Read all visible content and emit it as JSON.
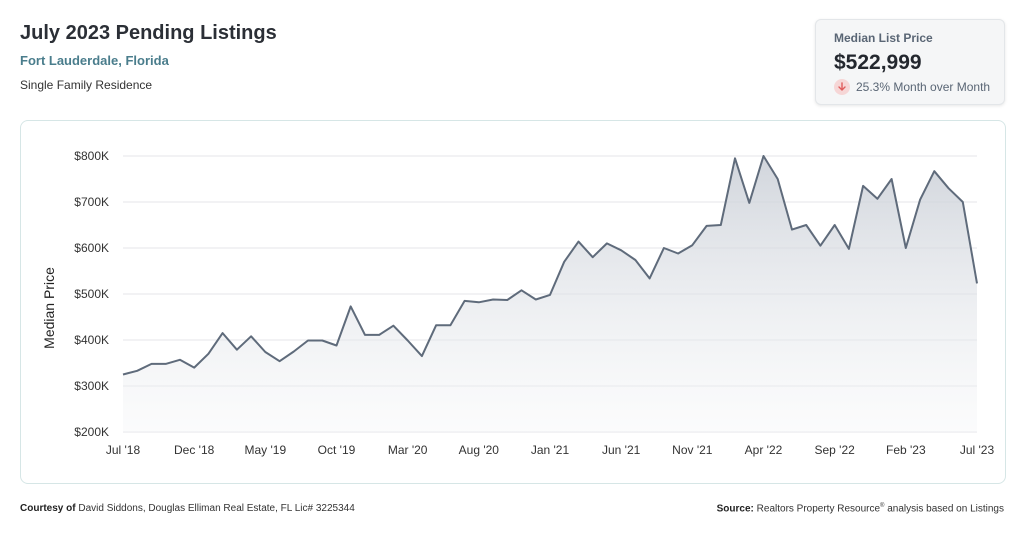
{
  "header": {
    "title": "July 2023 Pending Listings",
    "location": "Fort Lauderdale, Florida",
    "property_type": "Single Family Residence"
  },
  "stat": {
    "label": "Median List Price",
    "value": "$522,999",
    "change": "25.3% Month over Month",
    "direction": "down",
    "icon": "arrow-down-icon",
    "icon_color": "#e05c5c"
  },
  "footer": {
    "courtesy_label": "Courtesy of",
    "courtesy_text": "David Siddons, Douglas Elliman Real Estate, FL Lic# 3225344",
    "source_label": "Source:",
    "source_text_1": "Realtors Property Resource",
    "source_mark": "®",
    "source_text_2": " analysis based on Listings"
  },
  "chart_data": {
    "type": "area",
    "title": "",
    "xlabel": "",
    "ylabel": "Median Price",
    "ylim": [
      200000,
      800000
    ],
    "yticks": [
      200000,
      300000,
      400000,
      500000,
      600000,
      700000,
      800000
    ],
    "ytick_labels": [
      "$200K",
      "$300K",
      "$400K",
      "$500K",
      "$600K",
      "$700K",
      "$800K"
    ],
    "x_tick_labels": [
      "Jul '18",
      "Dec '18",
      "May '19",
      "Oct '19",
      "Mar '20",
      "Aug '20",
      "Jan '21",
      "Jun '21",
      "Nov '21",
      "Apr '22",
      "Sep '22",
      "Feb '23",
      "Jul '23"
    ],
    "x_tick_every": 5,
    "grid": true,
    "line_color": "#5f6b7b",
    "series": [
      {
        "values": [
          325000,
          333000,
          348000,
          348000,
          357000,
          340000,
          370000,
          415000,
          379000,
          408000,
          374000,
          354000,
          375000,
          399000,
          399000,
          388000,
          473000,
          411000,
          411000,
          431000,
          399000,
          365000,
          432000,
          432000,
          485000,
          482000,
          488000,
          487000,
          508000,
          488000,
          498000,
          570000,
          614000,
          580000,
          610000,
          595000,
          574000,
          534000,
          600000,
          588000,
          606000,
          648000,
          650000,
          795000,
          698000,
          800000,
          750000,
          640000,
          650000,
          605000,
          650000,
          598000,
          735000,
          707000,
          750000,
          600000,
          705000,
          767000,
          730000,
          700000,
          522999
        ]
      }
    ]
  }
}
